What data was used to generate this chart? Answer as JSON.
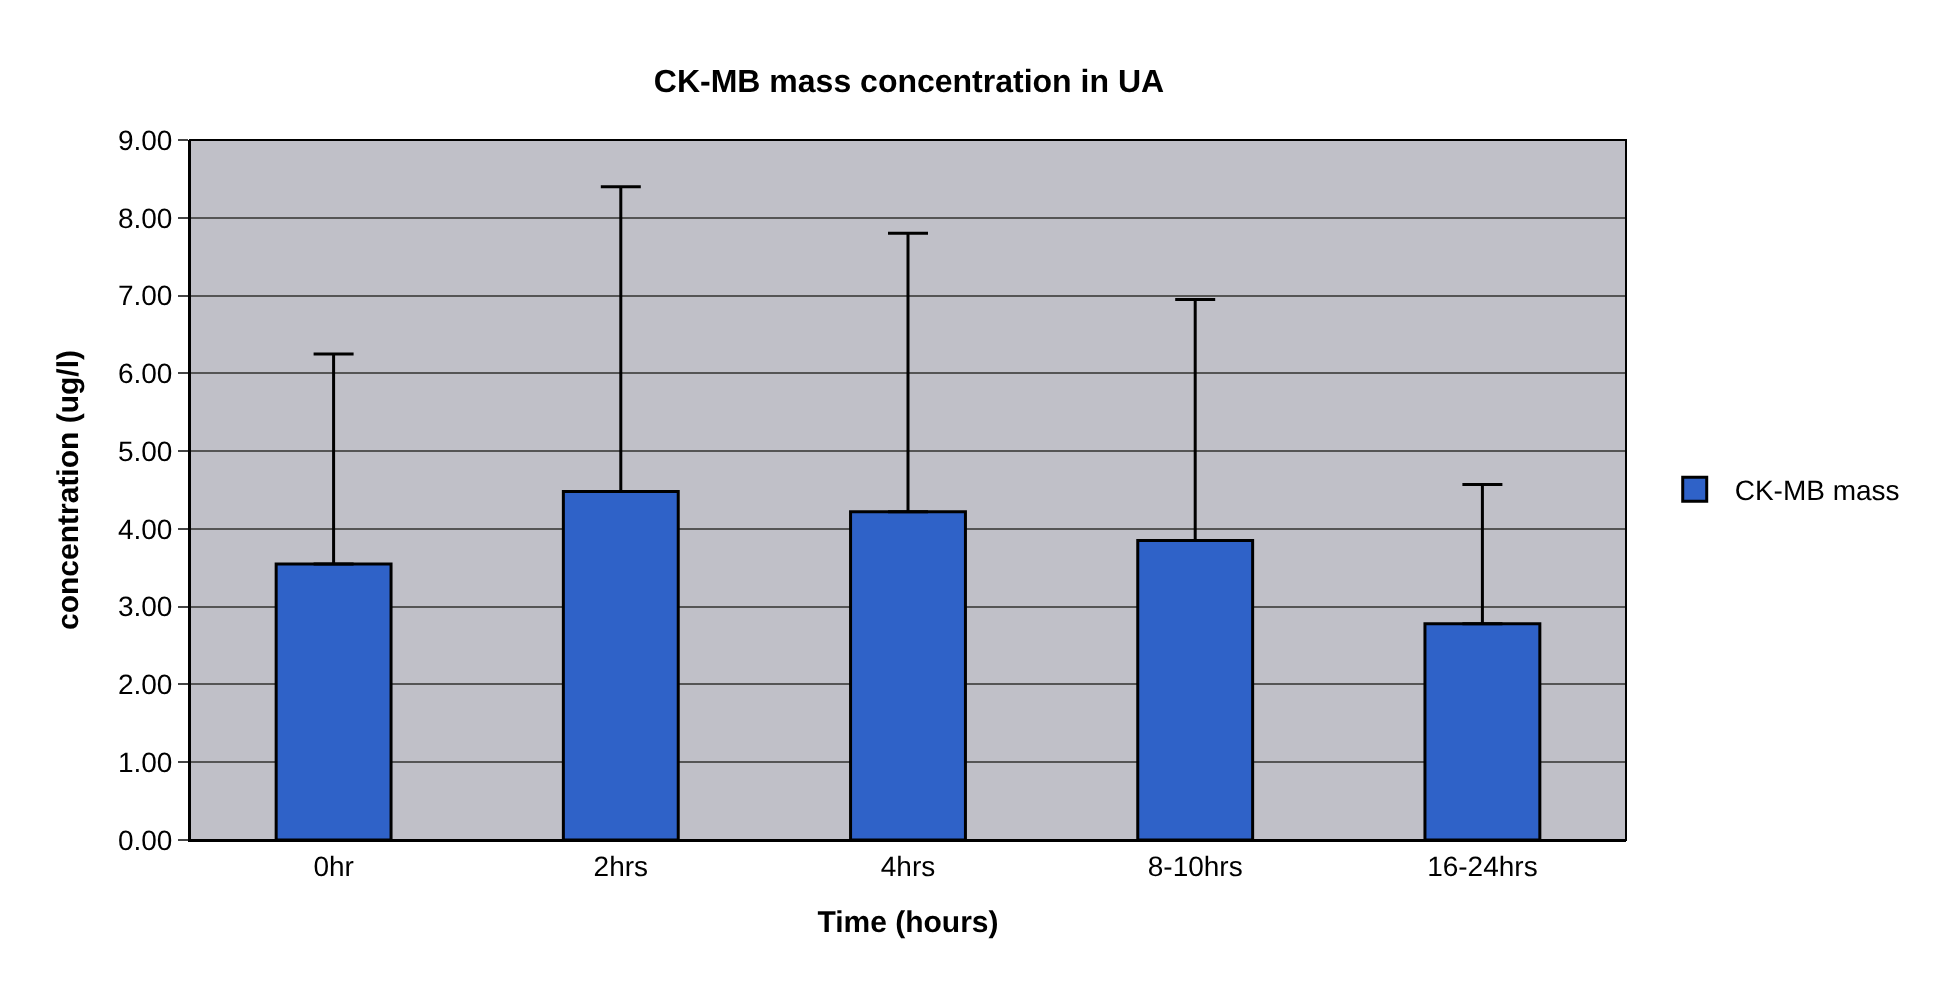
{
  "chart_data": {
    "type": "bar",
    "title": "CK-MB mass concentration in UA",
    "xlabel": "Time (hours)",
    "ylabel": "concentration (ug/l)",
    "categories": [
      "0hr",
      "2hrs",
      "4hrs",
      "8-10hrs",
      "16-24hrs"
    ],
    "series": [
      {
        "name": "CK-MB mass",
        "color": "#2f62c8",
        "values": [
          3.55,
          4.48,
          4.22,
          3.85,
          2.78
        ],
        "errors": [
          [
            3.55,
            6.25
          ],
          [
            4.48,
            8.4
          ],
          [
            4.22,
            7.8
          ],
          [
            3.85,
            6.95
          ],
          [
            2.78,
            4.57
          ]
        ]
      }
    ],
    "ylim": [
      0,
      9
    ],
    "yticks": [
      {
        "value": 0,
        "label": "0.00"
      },
      {
        "value": 1,
        "label": "1.00"
      },
      {
        "value": 2,
        "label": "2.00"
      },
      {
        "value": 3,
        "label": "3.00"
      },
      {
        "value": 4,
        "label": "4.00"
      },
      {
        "value": 5,
        "label": "5.00"
      },
      {
        "value": 6,
        "label": "6.00"
      },
      {
        "value": 7,
        "label": "7.00"
      },
      {
        "value": 8,
        "label": "8.00"
      },
      {
        "value": 9,
        "label": "9.00"
      }
    ],
    "grid": "y",
    "legend": "right"
  }
}
